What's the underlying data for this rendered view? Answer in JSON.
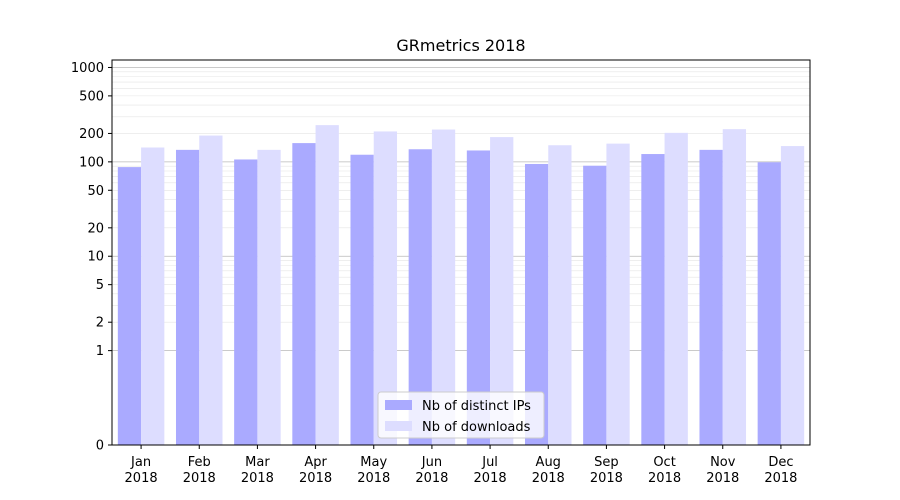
{
  "chart_data": {
    "type": "bar",
    "title": "GRmetrics 2018",
    "xlabel": "",
    "ylabel": "",
    "yscale": "symlog",
    "ylim": [
      0,
      1200
    ],
    "yticks": [
      0,
      1,
      2,
      5,
      10,
      20,
      50,
      100,
      200,
      500,
      1000
    ],
    "ytick_labels": [
      "0",
      "1",
      "2",
      "5",
      "10",
      "20",
      "50",
      "100",
      "200",
      "500",
      "1000"
    ],
    "categories": [
      "Jan\n2018",
      "Feb\n2018",
      "Mar\n2018",
      "Apr\n2018",
      "May\n2018",
      "Jun\n2018",
      "Jul\n2018",
      "Aug\n2018",
      "Sep\n2018",
      "Oct\n2018",
      "Nov\n2018",
      "Dec\n2018"
    ],
    "series": [
      {
        "name": "Nb of distinct IPs",
        "color": "#aaaaff",
        "values": [
          88,
          134,
          106,
          158,
          119,
          136,
          132,
          95,
          91,
          121,
          134,
          99
        ]
      },
      {
        "name": "Nb of downloads",
        "color": "#ddddff",
        "values": [
          142,
          190,
          134,
          245,
          210,
          220,
          183,
          150,
          156,
          203,
          222,
          147
        ]
      }
    ],
    "grid": {
      "major": true,
      "minor": true
    },
    "legend": {
      "placement": "lower-center"
    }
  }
}
